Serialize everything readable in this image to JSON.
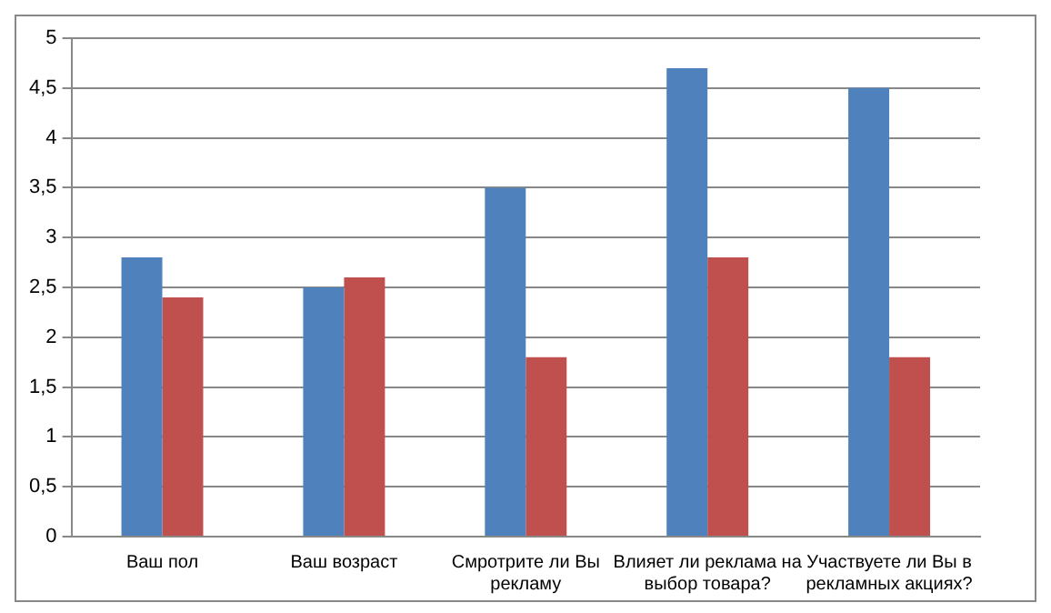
{
  "chart_data": {
    "type": "bar",
    "categories": [
      "Ваш пол",
      "Ваш возраст",
      "Смротрите ли Вы рекламу",
      "Влияет ли реклама на выбор товара?",
      "Участвуете ли Вы в рекламных акциях?"
    ],
    "series": [
      {
        "color": "#4f81bd",
        "values": [
          2.8,
          2.5,
          3.5,
          4.7,
          4.5
        ]
      },
      {
        "color": "#c0504d",
        "values": [
          2.4,
          2.6,
          1.8,
          2.8,
          1.8
        ]
      }
    ],
    "ylim": [
      0,
      5
    ],
    "yticks": [
      0,
      {
        "value": 0.5,
        "label": "0,5"
      },
      1,
      {
        "value": 1.5,
        "label": "1,5"
      },
      2,
      {
        "value": 2.5,
        "label": "2,5"
      },
      3,
      {
        "value": 3.5,
        "label": "3,5"
      },
      4,
      {
        "value": 4.5,
        "label": "4,5"
      },
      5
    ],
    "grid": "y",
    "legend": false
  }
}
